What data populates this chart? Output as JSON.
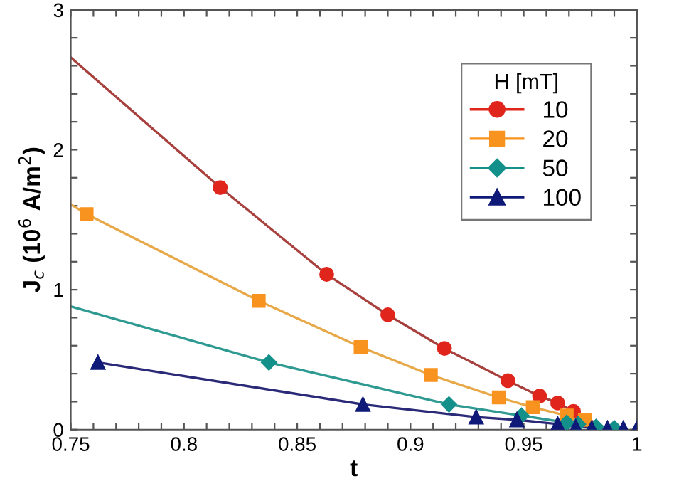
{
  "chart_data": {
    "type": "scatter",
    "xlabel": "t",
    "ylabel": "J$_{c}$ (10$^{6}$ A/m$^{2}$)",
    "legend_title": "H [mT]",
    "legend": "top right",
    "grid": false,
    "xlim": [
      0.75,
      1
    ],
    "ylim": [
      0,
      3
    ],
    "xticks": [
      0.75,
      {
        "value": 0.76,
        "label": null
      },
      {
        "value": 0.77,
        "label": null
      },
      {
        "value": 0.78,
        "label": null
      },
      {
        "value": 0.79,
        "label": null
      },
      0.8,
      {
        "value": 0.81,
        "label": null
      },
      {
        "value": 0.82,
        "label": null
      },
      {
        "value": 0.83,
        "label": null
      },
      {
        "value": 0.84,
        "label": null
      },
      0.85,
      {
        "value": 0.86,
        "label": null
      },
      {
        "value": 0.87,
        "label": null
      },
      {
        "value": 0.88,
        "label": null
      },
      {
        "value": 0.89,
        "label": null
      },
      0.9,
      {
        "value": 0.91,
        "label": null
      },
      {
        "value": 0.92,
        "label": null
      },
      {
        "value": 0.93,
        "label": null
      },
      {
        "value": 0.94,
        "label": null
      },
      0.95,
      {
        "value": 0.96,
        "label": null
      },
      {
        "value": 0.97,
        "label": null
      },
      {
        "value": 0.98,
        "label": null
      },
      {
        "value": 0.99,
        "label": null
      },
      1
    ],
    "yticks": [
      0,
      {
        "value": 0.2,
        "label": null
      },
      {
        "value": 0.4,
        "label": null
      },
      {
        "value": 0.6,
        "label": null
      },
      {
        "value": 0.8,
        "label": null
      },
      1,
      {
        "value": 1.2,
        "label": null
      },
      {
        "value": 1.4,
        "label": null
      },
      {
        "value": 1.6,
        "label": null
      },
      {
        "value": 1.8,
        "label": null
      },
      2,
      {
        "value": 2.2,
        "label": null
      },
      {
        "value": 2.4,
        "label": null
      },
      {
        "value": 2.6,
        "label": null
      },
      {
        "value": 2.8,
        "label": null
      },
      3
    ],
    "series": [
      {
        "type": "line",
        "color": "#a8403e",
        "marker": "none",
        "x": [
          0.75,
          0.816,
          0.863,
          0.89,
          0.915,
          0.943,
          0.957,
          0.965,
          0.972,
          0.985
        ],
        "values": [
          2.66,
          1.73,
          1.11,
          0.82,
          0.58,
          0.35,
          0.24,
          0.19,
          0.13,
          0.02
        ]
      },
      {
        "type": "line",
        "color": "#e8a848",
        "marker": "none",
        "x": [
          0.75,
          0.757,
          0.833,
          0.878,
          0.909,
          0.939,
          0.954,
          0.969,
          0.977
        ],
        "values": [
          1.61,
          1.54,
          0.92,
          0.59,
          0.39,
          0.23,
          0.16,
          0.1,
          0.07
        ]
      },
      {
        "type": "line",
        "color": "#2f9a92",
        "marker": "none",
        "x": [
          0.75,
          0.8375,
          0.917,
          0.949,
          0.969,
          0.974,
          0.985
        ],
        "values": [
          0.88,
          0.48,
          0.18,
          0.1,
          0.05,
          0.04,
          0.02
        ]
      },
      {
        "type": "line",
        "color": "#2a2a78",
        "marker": "none",
        "x": [
          0.762,
          0.879,
          0.929,
          0.947,
          0.965,
          0.973,
          0.985
        ],
        "values": [
          0.48,
          0.18,
          0.09,
          0.07,
          0.04,
          0.02,
          0.01
        ]
      },
      {
        "name": "10",
        "color": "#e0261c",
        "marker": "circle",
        "x": [
          0.816,
          0.863,
          0.89,
          0.915,
          0.943,
          0.957,
          0.965,
          0.972
        ],
        "values": [
          1.73,
          1.11,
          0.82,
          0.58,
          0.35,
          0.24,
          0.19,
          0.13
        ]
      },
      {
        "name": "20",
        "color": "#f7931e",
        "marker": "square",
        "x": [
          0.757,
          0.833,
          0.878,
          0.909,
          0.939,
          0.954,
          0.969,
          0.977
        ],
        "values": [
          1.54,
          0.92,
          0.59,
          0.39,
          0.23,
          0.16,
          0.1,
          0.07
        ]
      },
      {
        "name": "50",
        "color": "#13908a",
        "marker": "diamond",
        "x": [
          0.8375,
          0.917,
          0.949,
          0.969,
          0.974,
          0.982,
          0.99
        ],
        "values": [
          0.48,
          0.18,
          0.1,
          0.05,
          0.04,
          0.02,
          0.01
        ]
      },
      {
        "name": "100",
        "color": "#0f1a78",
        "marker": "triangle",
        "x": [
          0.762,
          0.879,
          0.929,
          0.947,
          0.965,
          0.973,
          0.98,
          0.987,
          0.994,
          1.0
        ],
        "values": [
          0.48,
          0.18,
          0.09,
          0.07,
          0.04,
          0.02,
          0.01,
          0.01,
          0.01,
          0.01
        ]
      }
    ]
  }
}
